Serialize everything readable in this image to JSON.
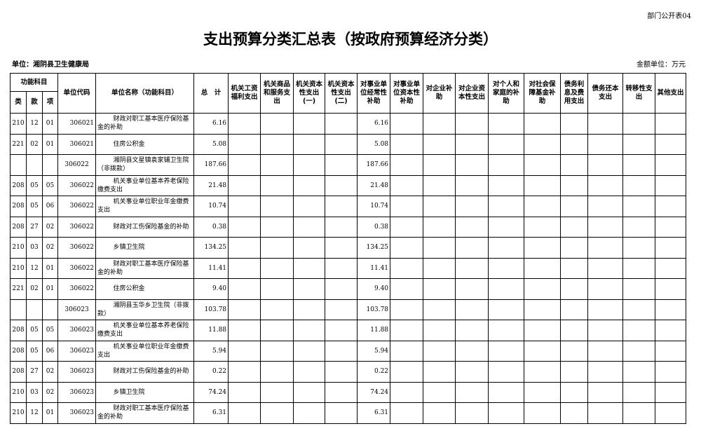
{
  "form_no": "部门公开表04",
  "title": "支出预算分类汇总表（按政府预算经济分类）",
  "unit_label": "单位：湘阴县卫生健康局",
  "amount_unit": "金额单位：万元",
  "headers": {
    "func": "功能科目",
    "lei": "类",
    "kuan": "款",
    "xiang": "项",
    "code": "单位代码",
    "name": "单位名称（功能科目）",
    "total": "总　计",
    "cols": [
      "机关工资福利支出",
      "机关商品和服务支出",
      "机关资本性支出(一)",
      "机关资本性支出(二)",
      "对事业单位经常性补助",
      "对事业单位资本性补助",
      "对企业补助",
      "对企业资本性支出",
      "对个人和家庭的补助",
      "对社会保障基金补助",
      "债务利息及费用支出",
      "债务还本支出",
      "转移性支出",
      "其他支出"
    ]
  },
  "rows": [
    {
      "lei": "210",
      "kuan": "12",
      "xiang": "01",
      "code": "306021",
      "name": "财政对职工基本医疗保险基金的补助",
      "total": "6.16",
      "sub": "6.16"
    },
    {
      "lei": "221",
      "kuan": "02",
      "xiang": "01",
      "code": "306021",
      "name": "住房公积金",
      "total": "5.08",
      "sub": "5.08"
    },
    {
      "lei": "",
      "kuan": "",
      "xiang": "",
      "code": "306022",
      "name": "湘阴县文星镇袁家铺卫生院（非拨款）",
      "total": "187.66",
      "sub": "187.66"
    },
    {
      "lei": "208",
      "kuan": "05",
      "xiang": "05",
      "code": "306022",
      "name": "机关事业单位基本养老保险缴费支出",
      "total": "21.48",
      "sub": "21.48"
    },
    {
      "lei": "208",
      "kuan": "05",
      "xiang": "06",
      "code": "306022",
      "name": "机关事业单位职业年金缴费支出",
      "total": "10.74",
      "sub": "10.74"
    },
    {
      "lei": "208",
      "kuan": "27",
      "xiang": "02",
      "code": "306022",
      "name": "财政对工伤保险基金的补助",
      "total": "0.38",
      "sub": "0.38"
    },
    {
      "lei": "210",
      "kuan": "03",
      "xiang": "02",
      "code": "306022",
      "name": "乡镇卫生院",
      "total": "134.25",
      "sub": "134.25"
    },
    {
      "lei": "210",
      "kuan": "12",
      "xiang": "01",
      "code": "306022",
      "name": "财政对职工基本医疗保险基金的补助",
      "total": "11.41",
      "sub": "11.41"
    },
    {
      "lei": "221",
      "kuan": "02",
      "xiang": "01",
      "code": "306022",
      "name": "住房公积金",
      "total": "9.40",
      "sub": "9.40"
    },
    {
      "lei": "",
      "kuan": "",
      "xiang": "",
      "code": "306023",
      "name": "湘阴县玉华乡卫生院（非拨款）",
      "total": "103.78",
      "sub": "103.78"
    },
    {
      "lei": "208",
      "kuan": "05",
      "xiang": "05",
      "code": "306023",
      "name": "机关事业单位基本养老保险缴费支出",
      "total": "11.88",
      "sub": "11.88"
    },
    {
      "lei": "208",
      "kuan": "05",
      "xiang": "06",
      "code": "306023",
      "name": "机关事业单位职业年金缴费支出",
      "total": "5.94",
      "sub": "5.94"
    },
    {
      "lei": "208",
      "kuan": "27",
      "xiang": "02",
      "code": "306023",
      "name": "财政对工伤保险基金的补助",
      "total": "0.22",
      "sub": "0.22"
    },
    {
      "lei": "210",
      "kuan": "03",
      "xiang": "02",
      "code": "306023",
      "name": "乡镇卫生院",
      "total": "74.24",
      "sub": "74.24"
    },
    {
      "lei": "210",
      "kuan": "12",
      "xiang": "01",
      "code": "306023",
      "name": "财政对职工基本医疗保险基金的补助",
      "total": "6.31",
      "sub": "6.31"
    }
  ]
}
